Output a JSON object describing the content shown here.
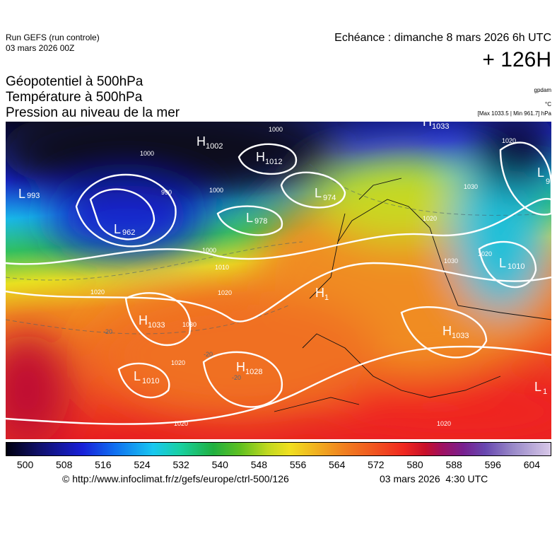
{
  "header": {
    "run": "Run GEFS (run controle)",
    "run_date": "03 mars 2026 00Z",
    "valid": "Echéance : dimanche 8 mars 2026 6h UTC",
    "lead": "+ 126H"
  },
  "fields": [
    "Géopotentiel à 500hPa",
    "Température à 500hPa",
    "Pression au niveau de la mer"
  ],
  "units": [
    "gpdam",
    "°C",
    "[Max 1033.5 | Min 961.7] hPa"
  ],
  "map": {
    "centers": [
      {
        "letter": "H",
        "value": "1002"
      },
      {
        "letter": "H",
        "value": "1012"
      },
      {
        "letter": "L",
        "value": "974"
      },
      {
        "letter": "L",
        "value": "993"
      },
      {
        "letter": "L",
        "value": "962"
      },
      {
        "letter": "L",
        "value": "978"
      },
      {
        "letter": "H",
        "value": "1033"
      },
      {
        "letter": "L",
        "value": "9"
      },
      {
        "letter": "L",
        "value": "1010"
      },
      {
        "letter": "H",
        "value": "1"
      },
      {
        "letter": "H",
        "value": "1033"
      },
      {
        "letter": "H",
        "value": "1033"
      },
      {
        "letter": "L",
        "value": "1010"
      },
      {
        "letter": "H",
        "value": "1028"
      },
      {
        "letter": "L",
        "value": "1"
      }
    ],
    "isobar_labels": [
      "1000",
      "1000",
      "990",
      "1000",
      "1000",
      "1010",
      "1020",
      "1020",
      "1030",
      "1020",
      "1030",
      "1020",
      "1020",
      "1020",
      "1030",
      "1020",
      "1020",
      "-20",
      "-20",
      "-20"
    ]
  },
  "colorbar": {
    "range": [
      496,
      608
    ],
    "ticks": [
      500,
      508,
      516,
      524,
      532,
      540,
      548,
      556,
      564,
      572,
      580,
      588,
      596,
      604
    ]
  },
  "footer": {
    "url": "© http://www.infoclimat.fr/z/gefs/europe/ctrl-500/126",
    "date": "03 mars 2026  4:30 UTC"
  }
}
